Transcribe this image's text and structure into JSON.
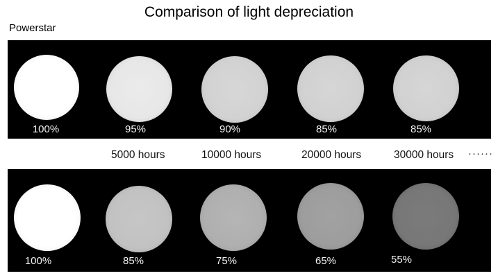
{
  "title": "Comparison of light depreciation",
  "brand": "Powerstar",
  "top_row": {
    "values": [
      "100%",
      "95%",
      "90%",
      "85%",
      "85%"
    ]
  },
  "hours": [
    "5000 hours",
    "10000 hours",
    "20000 hours",
    "30000 hours"
  ],
  "hours_trailing": "······",
  "bottom_row": {
    "values": [
      "100%",
      "85%",
      "75%",
      "65%",
      "55%"
    ]
  }
}
